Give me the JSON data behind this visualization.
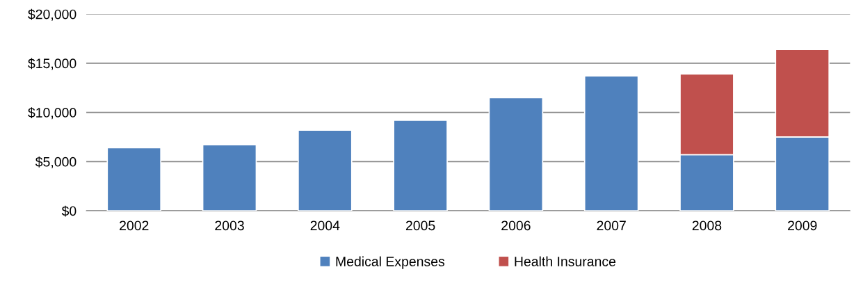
{
  "chart_data": {
    "type": "bar",
    "stacked": true,
    "categories": [
      "2002",
      "2003",
      "2004",
      "2005",
      "2006",
      "2007",
      "2008",
      "2009"
    ],
    "series": [
      {
        "name": "Medical Expenses",
        "color": "#4f81bd",
        "values": [
          6400,
          6700,
          8200,
          9200,
          11500,
          13700,
          5700,
          7500
        ]
      },
      {
        "name": "Health Insurance",
        "color": "#c0504d",
        "values": [
          null,
          null,
          null,
          null,
          null,
          null,
          8200,
          8900
        ]
      }
    ],
    "ylim": [
      0,
      20000
    ],
    "yticks": [
      {
        "value": 0,
        "label": "$0"
      },
      {
        "value": 5000,
        "label": "$5,000"
      },
      {
        "value": 10000,
        "label": "$10,000"
      },
      {
        "value": 15000,
        "label": "$15,000"
      },
      {
        "value": 20000,
        "label": "$20,000"
      }
    ],
    "grid": "y",
    "legend": "bottom"
  }
}
